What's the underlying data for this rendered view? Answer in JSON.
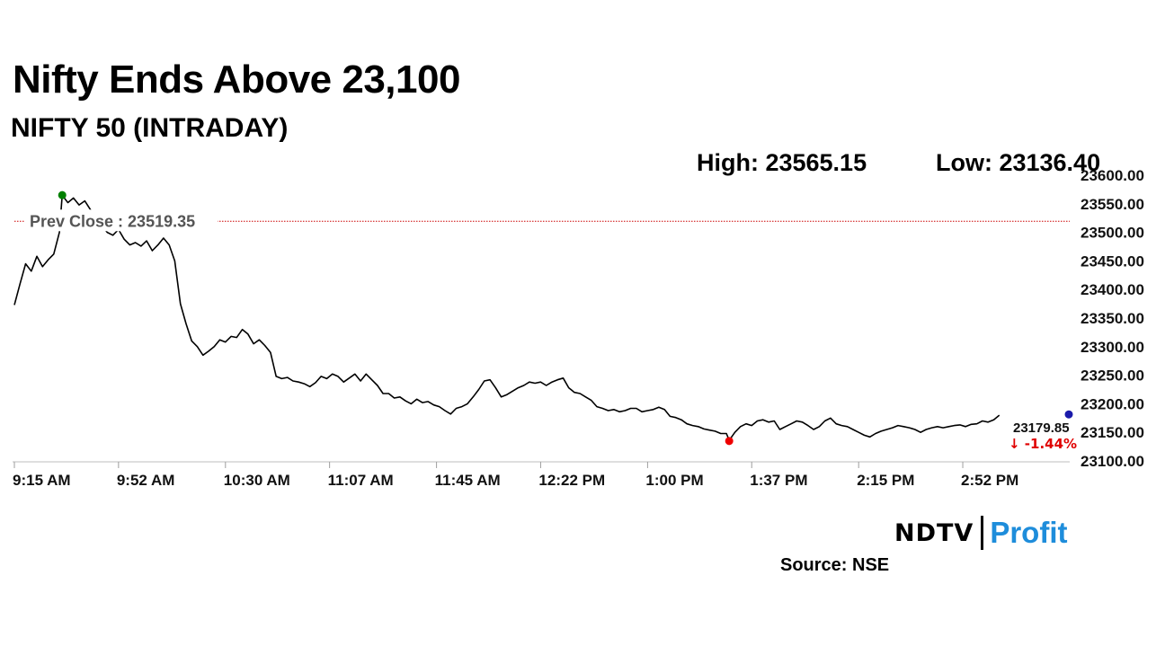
{
  "headline": "Nifty Ends Above 23,100",
  "subheadline": "NIFTY 50 (INTRADAY)",
  "high_text": "High: 23565.15",
  "low_text": "Low: 23136.40",
  "source": "Source: NSE",
  "logo": {
    "left": "NDTV",
    "right": "Profit",
    "right_color": "#1e8ddb"
  },
  "chart_data": {
    "type": "line",
    "title": "NIFTY 50 (INTRADAY)",
    "xlabel": "",
    "ylabel": "",
    "x_ticks": [
      "9:15 AM",
      "9:52 AM",
      "10:30 AM",
      "11:07 AM",
      "11:45 AM",
      "12:22 PM",
      "1:00 PM",
      "1:37 PM",
      "2:15 PM",
      "2:52 PM"
    ],
    "x_range": [
      "9:15 AM",
      "3:30 PM"
    ],
    "y_ticks": [
      "23600.00",
      "23550.00",
      "23500.00",
      "23450.00",
      "23400.00",
      "23350.00",
      "23300.00",
      "23250.00",
      "23200.00",
      "23150.00",
      "23100.00"
    ],
    "ylim": [
      23100,
      23600
    ],
    "grid": false,
    "prev_close": {
      "label": "Prev Close : 23519.35",
      "value": 23519.35,
      "color": "#cc0000"
    },
    "high": {
      "time": "9:32 AM",
      "value": 23565.15,
      "color": "#008000"
    },
    "low": {
      "time": "1:29 PM",
      "value": 23136.4,
      "color": "#ee0000"
    },
    "last": {
      "label": "23179.85",
      "value": 23179.85,
      "color": "#1a1aaa"
    },
    "change": {
      "label": "↓ -1.44%",
      "color": "#e00000"
    },
    "line_color": "#000000",
    "series": [
      {
        "points": [
          [
            "9:15 AM",
            23373
          ],
          [
            "9:17 AM",
            23410
          ],
          [
            "9:19 AM",
            23445
          ],
          [
            "9:21 AM",
            23432
          ],
          [
            "9:23 AM",
            23458
          ],
          [
            "9:25 AM",
            23440
          ],
          [
            "9:27 AM",
            23452
          ],
          [
            "9:29 AM",
            23462
          ],
          [
            "9:31 AM",
            23500
          ],
          [
            "9:32 AM",
            23565
          ],
          [
            "9:34 AM",
            23552
          ],
          [
            "9:36 AM",
            23560
          ],
          [
            "9:38 AM",
            23548
          ],
          [
            "9:40 AM",
            23555
          ],
          [
            "9:42 AM",
            23540
          ],
          [
            "9:44 AM",
            23525
          ],
          [
            "9:46 AM",
            23512
          ],
          [
            "9:48 AM",
            23500
          ],
          [
            "9:50 AM",
            23495
          ],
          [
            "9:52 AM",
            23505
          ],
          [
            "9:54 AM",
            23488
          ],
          [
            "9:56 AM",
            23478
          ],
          [
            "9:58 AM",
            23482
          ],
          [
            "10:00 AM",
            23476
          ],
          [
            "10:02 AM",
            23485
          ],
          [
            "10:04 AM",
            23468
          ],
          [
            "10:06 AM",
            23478
          ],
          [
            "10:08 AM",
            23490
          ],
          [
            "10:10 AM",
            23478
          ],
          [
            "10:12 AM",
            23450
          ],
          [
            "10:14 AM",
            23375
          ],
          [
            "10:16 AM",
            23340
          ],
          [
            "10:18 AM",
            23310
          ],
          [
            "10:20 AM",
            23300
          ],
          [
            "10:22 AM",
            23285
          ],
          [
            "10:24 AM",
            23292
          ],
          [
            "10:26 AM",
            23300
          ],
          [
            "10:28 AM",
            23312
          ],
          [
            "10:30 AM",
            23308
          ],
          [
            "10:32 AM",
            23318
          ],
          [
            "10:34 AM",
            23316
          ],
          [
            "10:36 AM",
            23330
          ],
          [
            "10:38 AM",
            23322
          ],
          [
            "10:40 AM",
            23305
          ],
          [
            "10:42 AM",
            23312
          ],
          [
            "10:44 AM",
            23302
          ],
          [
            "10:46 AM",
            23290
          ],
          [
            "10:48 AM",
            23248
          ],
          [
            "10:50 AM",
            23244
          ],
          [
            "10:52 AM",
            23246
          ],
          [
            "10:54 AM",
            23240
          ],
          [
            "10:56 AM",
            23238
          ],
          [
            "10:58 AM",
            23235
          ],
          [
            "11:00 AM",
            23230
          ],
          [
            "11:02 AM",
            23237
          ],
          [
            "11:04 AM",
            23248
          ],
          [
            "11:06 AM",
            23244
          ],
          [
            "11:08 AM",
            23252
          ],
          [
            "11:10 AM",
            23248
          ],
          [
            "11:12 AM",
            23238
          ],
          [
            "11:14 AM",
            23245
          ],
          [
            "11:16 AM",
            23252
          ],
          [
            "11:18 AM",
            23240
          ],
          [
            "11:20 AM",
            23252
          ],
          [
            "11:22 AM",
            23242
          ],
          [
            "11:24 AM",
            23232
          ],
          [
            "11:26 AM",
            23218
          ],
          [
            "11:28 AM",
            23218
          ],
          [
            "11:30 AM",
            23210
          ],
          [
            "11:32 AM",
            23212
          ],
          [
            "11:34 AM",
            23205
          ],
          [
            "11:36 AM",
            23200
          ],
          [
            "11:38 AM",
            23208
          ],
          [
            "11:40 AM",
            23202
          ],
          [
            "11:42 AM",
            23204
          ],
          [
            "11:44 AM",
            23198
          ],
          [
            "11:46 AM",
            23195
          ],
          [
            "11:48 AM",
            23188
          ],
          [
            "11:50 AM",
            23182
          ],
          [
            "11:52 AM",
            23192
          ],
          [
            "11:54 AM",
            23195
          ],
          [
            "11:56 AM",
            23200
          ],
          [
            "11:58 AM",
            23212
          ],
          [
            "12:00 PM",
            23225
          ],
          [
            "12:02 PM",
            23240
          ],
          [
            "12:04 PM",
            23242
          ],
          [
            "12:06 PM",
            23228
          ],
          [
            "12:08 PM",
            23212
          ],
          [
            "12:10 PM",
            23216
          ],
          [
            "12:12 PM",
            23222
          ],
          [
            "12:14 PM",
            23228
          ],
          [
            "12:16 PM",
            23232
          ],
          [
            "12:18 PM",
            23238
          ],
          [
            "12:20 PM",
            23236
          ],
          [
            "12:22 PM",
            23238
          ],
          [
            "12:24 PM",
            23232
          ],
          [
            "12:26 PM",
            23238
          ],
          [
            "12:28 PM",
            23242
          ],
          [
            "12:30 PM",
            23245
          ],
          [
            "12:32 PM",
            23228
          ],
          [
            "12:34 PM",
            23220
          ],
          [
            "12:36 PM",
            23218
          ],
          [
            "12:38 PM",
            23212
          ],
          [
            "12:40 PM",
            23206
          ],
          [
            "12:42 PM",
            23195
          ],
          [
            "12:44 PM",
            23192
          ],
          [
            "12:46 PM",
            23188
          ],
          [
            "12:48 PM",
            23190
          ],
          [
            "12:50 PM",
            23186
          ],
          [
            "12:52 PM",
            23188
          ],
          [
            "12:54 PM",
            23192
          ],
          [
            "12:56 PM",
            23192
          ],
          [
            "12:58 PM",
            23186
          ],
          [
            "1:00 PM",
            23188
          ],
          [
            "1:02 PM",
            23190
          ],
          [
            "1:04 PM",
            23194
          ],
          [
            "1:06 PM",
            23190
          ],
          [
            "1:08 PM",
            23178
          ],
          [
            "1:10 PM",
            23176
          ],
          [
            "1:12 PM",
            23172
          ],
          [
            "1:14 PM",
            23165
          ],
          [
            "1:16 PM",
            23162
          ],
          [
            "1:18 PM",
            23160
          ],
          [
            "1:20 PM",
            23156
          ],
          [
            "1:22 PM",
            23154
          ],
          [
            "1:24 PM",
            23152
          ],
          [
            "1:26 PM",
            23148
          ],
          [
            "1:28 PM",
            23148
          ],
          [
            "1:29 PM",
            23136
          ],
          [
            "1:31 PM",
            23150
          ],
          [
            "1:33 PM",
            23160
          ],
          [
            "1:35 PM",
            23165
          ],
          [
            "1:37 PM",
            23162
          ],
          [
            "1:39 PM",
            23170
          ],
          [
            "1:41 PM",
            23172
          ],
          [
            "1:43 PM",
            23168
          ],
          [
            "1:45 PM",
            23170
          ],
          [
            "1:47 PM",
            23155
          ],
          [
            "1:49 PM",
            23160
          ],
          [
            "1:51 PM",
            23165
          ],
          [
            "1:53 PM",
            23170
          ],
          [
            "1:55 PM",
            23168
          ],
          [
            "1:57 PM",
            23162
          ],
          [
            "1:59 PM",
            23155
          ],
          [
            "2:01 PM",
            23160
          ],
          [
            "2:03 PM",
            23170
          ],
          [
            "2:05 PM",
            23175
          ],
          [
            "2:07 PM",
            23165
          ],
          [
            "2:09 PM",
            23162
          ],
          [
            "2:11 PM",
            23160
          ],
          [
            "2:13 PM",
            23155
          ],
          [
            "2:15 PM",
            23150
          ],
          [
            "2:17 PM",
            23145
          ],
          [
            "2:19 PM",
            23142
          ],
          [
            "2:21 PM",
            23148
          ],
          [
            "2:23 PM",
            23152
          ],
          [
            "2:25 PM",
            23155
          ],
          [
            "2:27 PM",
            23158
          ],
          [
            "2:29 PM",
            23162
          ],
          [
            "2:31 PM",
            23160
          ],
          [
            "2:33 PM",
            23158
          ],
          [
            "2:35 PM",
            23155
          ],
          [
            "2:37 PM",
            23150
          ],
          [
            "2:39 PM",
            23155
          ],
          [
            "2:41 PM",
            23158
          ],
          [
            "2:43 PM",
            23160
          ],
          [
            "2:45 PM",
            23158
          ],
          [
            "2:47 PM",
            23160
          ],
          [
            "2:49 PM",
            23162
          ],
          [
            "2:51 PM",
            23163
          ],
          [
            "2:53 PM",
            23160
          ],
          [
            "2:55 PM",
            23164
          ],
          [
            "2:57 PM",
            23165
          ],
          [
            "2:59 PM",
            23170
          ],
          [
            "3:01 PM",
            23168
          ],
          [
            "3:03 PM",
            23172
          ],
          [
            "3:05 PM",
            23180
          ]
        ]
      }
    ]
  }
}
